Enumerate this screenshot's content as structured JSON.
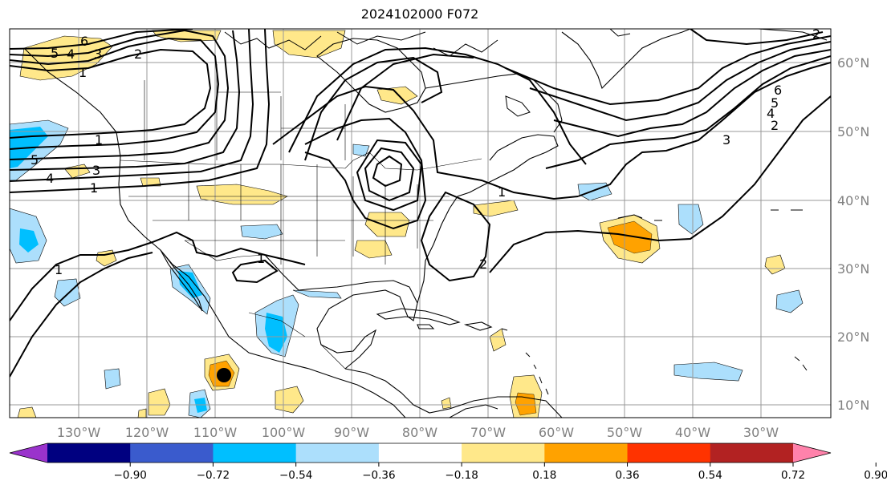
{
  "title": "2024102000 F072",
  "map": {
    "lon_ticks": [
      "130°W",
      "120°W",
      "110°W",
      "100°W",
      "90°W",
      "80°W",
      "70°W",
      "60°W",
      "50°W",
      "40°W",
      "30°W"
    ],
    "lat_ticks": [
      "60°N",
      "50°N",
      "40°N",
      "30°N",
      "20°N",
      "10°N"
    ]
  },
  "colorbar": {
    "ticks": [
      "−0.90",
      "−0.72",
      "−0.54",
      "−0.36",
      "−0.18",
      "0.18",
      "0.36",
      "0.54",
      "0.72",
      "0.90"
    ],
    "colors": [
      "#9a33cc",
      "#000080",
      "#3a5bcd",
      "#00bfff",
      "#acdffc",
      "#ffffff",
      "#ffe88a",
      "#ffa200",
      "#ff3300",
      "#b22222",
      "#ff82ab"
    ]
  },
  "contour_labels": [
    "6",
    "5",
    "4",
    "3",
    "2",
    "1",
    "1",
    "1",
    "2",
    "1",
    "1",
    "2",
    "3",
    "4",
    "5",
    "6",
    "2",
    "5",
    "4",
    "3",
    "1"
  ]
}
